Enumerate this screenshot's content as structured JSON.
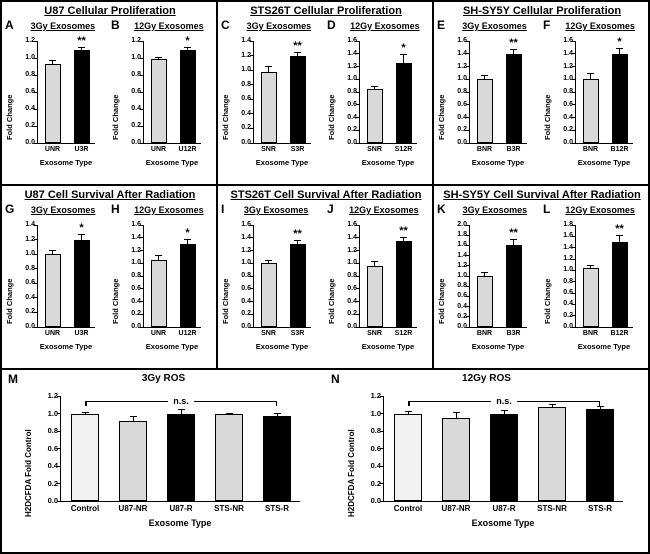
{
  "group_titles": [
    "U87 Cellular Proliferation",
    "STS26T Cellular Proliferation",
    "SH-SY5Y Cellular Proliferation",
    "U87 Cell Survival After Radiation",
    "STS26T Cell Survival After Radiation",
    "SH-SY5Y Cell Survival After Radiation"
  ],
  "colors": {
    "control": "#f2f2f2",
    "nonradiated": "#d9d9d9",
    "radiated": "#000000"
  },
  "chart_data": [
    {
      "panel": "A",
      "subtitle": "3Gy Exosomes",
      "type": "bar",
      "categories": [
        "UNR",
        "U3R"
      ],
      "values": [
        0.93,
        1.1
      ],
      "errors": [
        0.03,
        0.02
      ],
      "bar_colors": [
        "#d9d9d9",
        "#000000"
      ],
      "ylabel": "Fold Change",
      "xlabel": "Exosome Type",
      "ylim": [
        0,
        1.2
      ],
      "ytick_step": 0.2,
      "significance": {
        "label": "**",
        "index": 1
      }
    },
    {
      "panel": "B",
      "subtitle": "12Gy Exosomes",
      "type": "bar",
      "categories": [
        "UNR",
        "U12R"
      ],
      "values": [
        0.99,
        1.09
      ],
      "errors": [
        0.01,
        0.03
      ],
      "bar_colors": [
        "#d9d9d9",
        "#000000"
      ],
      "ylabel": "Fold Change",
      "xlabel": "Exosome Type",
      "ylim": [
        0,
        1.2
      ],
      "ytick_step": 0.2,
      "significance": {
        "label": "*",
        "index": 1
      }
    },
    {
      "panel": "C",
      "subtitle": "3Gy Exosomes",
      "type": "bar",
      "categories": [
        "SNR",
        "S3R"
      ],
      "values": [
        0.98,
        1.2
      ],
      "errors": [
        0.07,
        0.04
      ],
      "bar_colors": [
        "#d9d9d9",
        "#000000"
      ],
      "ylabel": "Fold Change",
      "xlabel": "Exosome Type",
      "ylim": [
        0,
        1.4
      ],
      "ytick_step": 0.2,
      "significance": {
        "label": "**",
        "index": 1
      }
    },
    {
      "panel": "D",
      "subtitle": "12Gy Exosomes",
      "type": "bar",
      "categories": [
        "SNR",
        "S12R"
      ],
      "values": [
        0.85,
        1.25
      ],
      "errors": [
        0.03,
        0.13
      ],
      "bar_colors": [
        "#d9d9d9",
        "#000000"
      ],
      "ylabel": "Fold Change",
      "xlabel": "Exosome Type",
      "ylim": [
        0,
        1.6
      ],
      "ytick_step": 0.2,
      "significance": {
        "label": "*",
        "index": 1
      }
    },
    {
      "panel": "E",
      "subtitle": "3Gy Exosomes",
      "type": "bar",
      "categories": [
        "BNR",
        "B3R"
      ],
      "values": [
        1.0,
        1.4
      ],
      "errors": [
        0.05,
        0.06
      ],
      "bar_colors": [
        "#d9d9d9",
        "#000000"
      ],
      "ylabel": "Fold Change",
      "xlabel": "Exosome Type",
      "ylim": [
        0,
        1.6
      ],
      "ytick_step": 0.2,
      "significance": {
        "label": "**",
        "index": 1
      }
    },
    {
      "panel": "F",
      "subtitle": "12Gy Exosomes",
      "type": "bar",
      "categories": [
        "BNR",
        "B12R"
      ],
      "values": [
        1.0,
        1.4
      ],
      "errors": [
        0.08,
        0.08
      ],
      "bar_colors": [
        "#d9d9d9",
        "#000000"
      ],
      "ylabel": "Fold Change",
      "xlabel": "Exosome Type",
      "ylim": [
        0,
        1.6
      ],
      "ytick_step": 0.2,
      "significance": {
        "label": "*",
        "index": 1
      }
    },
    {
      "panel": "G",
      "subtitle": "3Gy Exosomes",
      "type": "bar",
      "categories": [
        "UNR",
        "U3R"
      ],
      "values": [
        1.0,
        1.2
      ],
      "errors": [
        0.04,
        0.06
      ],
      "bar_colors": [
        "#d9d9d9",
        "#000000"
      ],
      "ylabel": "Fold Change",
      "xlabel": "Exosome Type",
      "ylim": [
        0,
        1.4
      ],
      "ytick_step": 0.2,
      "significance": {
        "label": "*",
        "index": 1
      }
    },
    {
      "panel": "H",
      "subtitle": "12Gy Exosomes",
      "type": "bar",
      "categories": [
        "UNR",
        "U12R"
      ],
      "values": [
        1.05,
        1.3
      ],
      "errors": [
        0.06,
        0.07
      ],
      "bar_colors": [
        "#d9d9d9",
        "#000000"
      ],
      "ylabel": "Fold Change",
      "xlabel": "Exosome Type",
      "ylim": [
        0,
        1.6
      ],
      "ytick_step": 0.2,
      "significance": {
        "label": "*",
        "index": 1
      }
    },
    {
      "panel": "I",
      "subtitle": "3Gy Exosomes",
      "type": "bar",
      "categories": [
        "SNR",
        "S3R"
      ],
      "values": [
        1.0,
        1.3
      ],
      "errors": [
        0.03,
        0.05
      ],
      "bar_colors": [
        "#d9d9d9",
        "#000000"
      ],
      "ylabel": "Fold Change",
      "xlabel": "Exosome Type",
      "ylim": [
        0,
        1.6
      ],
      "ytick_step": 0.2,
      "significance": {
        "label": "**",
        "index": 1
      }
    },
    {
      "panel": "J",
      "subtitle": "12Gy Exosomes",
      "type": "bar",
      "categories": [
        "SNR",
        "S12R"
      ],
      "values": [
        0.95,
        1.35
      ],
      "errors": [
        0.07,
        0.05
      ],
      "bar_colors": [
        "#d9d9d9",
        "#000000"
      ],
      "ylabel": "Fold Change",
      "xlabel": "Exosome Type",
      "ylim": [
        0,
        1.6
      ],
      "ytick_step": 0.2,
      "significance": {
        "label": "**",
        "index": 1
      }
    },
    {
      "panel": "K",
      "subtitle": "3Gy Exosomes",
      "type": "bar",
      "categories": [
        "BNR",
        "B3R"
      ],
      "values": [
        1.0,
        1.6
      ],
      "errors": [
        0.05,
        0.1
      ],
      "bar_colors": [
        "#d9d9d9",
        "#000000"
      ],
      "ylabel": "Fold Change",
      "xlabel": "Exosome Type",
      "ylim": [
        0,
        2.0
      ],
      "ytick_step": 0.2,
      "significance": {
        "label": "**",
        "index": 1
      }
    },
    {
      "panel": "L",
      "subtitle": "12Gy Exosomes",
      "type": "bar",
      "categories": [
        "BNR",
        "B12R"
      ],
      "values": [
        1.05,
        1.5
      ],
      "errors": [
        0.03,
        0.1
      ],
      "bar_colors": [
        "#d9d9d9",
        "#000000"
      ],
      "ylabel": "Fold Change",
      "xlabel": "Exosome Type",
      "ylim": [
        0,
        1.8
      ],
      "ytick_step": 0.2,
      "significance": {
        "label": "**",
        "index": 1
      }
    },
    {
      "panel": "M",
      "subtitle": "3Gy ROS",
      "type": "bar",
      "categories": [
        "Control",
        "U87-NR",
        "U87-R",
        "STS-NR",
        "STS-R"
      ],
      "values": [
        1.0,
        0.92,
        1.0,
        0.99,
        0.97
      ],
      "errors": [
        0.01,
        0.04,
        0.04,
        0.01,
        0.02
      ],
      "bar_colors": [
        "#f2f2f2",
        "#d9d9d9",
        "#000000",
        "#d9d9d9",
        "#000000"
      ],
      "ylabel": "H2DCFDA Fold Control",
      "xlabel": "Exosome Type",
      "ylim": [
        0,
        1.2
      ],
      "ytick_step": 0.2,
      "annotation": {
        "label": "n.s.",
        "y": 1.13
      }
    },
    {
      "panel": "N",
      "subtitle": "12Gy ROS",
      "type": "bar",
      "categories": [
        "Control",
        "U87-NR",
        "U87-R",
        "STS-NR",
        "STS-R"
      ],
      "values": [
        1.0,
        0.95,
        1.0,
        1.08,
        1.05
      ],
      "errors": [
        0.02,
        0.06,
        0.03,
        0.02,
        0.02
      ],
      "bar_colors": [
        "#f2f2f2",
        "#d9d9d9",
        "#000000",
        "#d9d9d9",
        "#000000"
      ],
      "ylabel": "H2DCFDA Fold Control",
      "xlabel": "Exosome Type",
      "ylim": [
        0,
        1.2
      ],
      "ytick_step": 0.2,
      "annotation": {
        "label": "n.s.",
        "y": 1.13
      }
    }
  ]
}
